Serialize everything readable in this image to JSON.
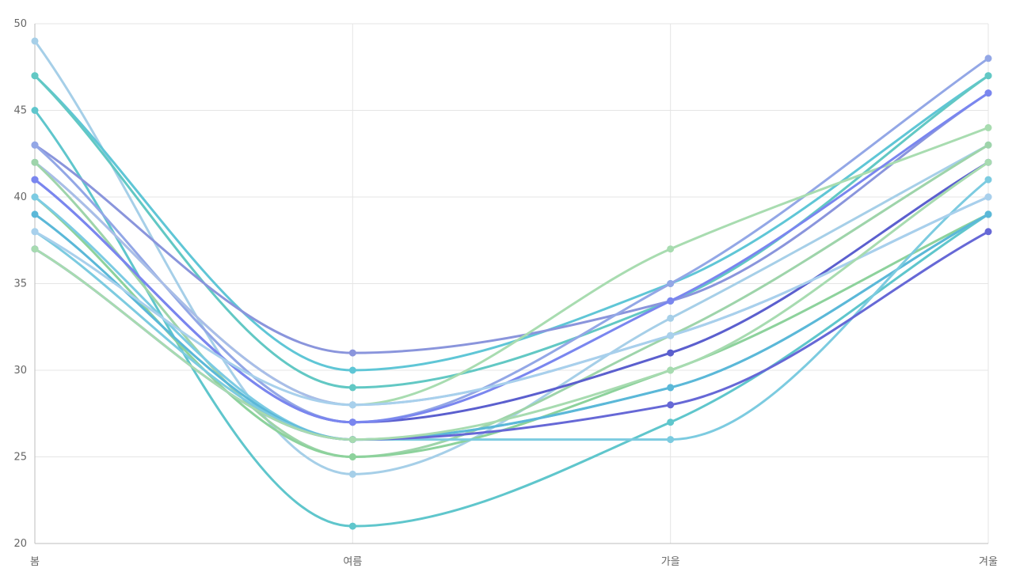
{
  "chart_data": {
    "type": "line",
    "title": "",
    "xlabel": "",
    "ylabel": "",
    "categories": [
      "봄",
      "여름",
      "가을",
      "겨울"
    ],
    "ylim": [
      20,
      50
    ],
    "yticks": [
      20,
      25,
      30,
      35,
      40,
      45,
      50
    ],
    "grid": true,
    "legend": "none",
    "curve": "smooth",
    "series": [
      {
        "values": [
          49,
          24,
          33,
          43
        ],
        "color": "#a6cfe8"
      },
      {
        "values": [
          47,
          30,
          35,
          47
        ],
        "color": "#5fc6d6"
      },
      {
        "values": [
          47,
          29,
          34,
          47
        ],
        "color": "#62c8c4"
      },
      {
        "values": [
          45,
          21,
          27,
          39
        ],
        "color": "#5fc6cc"
      },
      {
        "values": [
          43,
          31,
          34,
          46
        ],
        "color": "#8a95dc"
      },
      {
        "values": [
          43,
          27,
          35,
          48
        ],
        "color": "#93a7e6"
      },
      {
        "values": [
          42,
          28,
          37,
          44
        ],
        "color": "#a8dcb0"
      },
      {
        "values": [
          42,
          28,
          32,
          40
        ],
        "color": "#a9bde9"
      },
      {
        "values": [
          42,
          25,
          32,
          43
        ],
        "color": "#9ed4aa"
      },
      {
        "values": [
          41,
          27,
          31,
          42
        ],
        "color": "#5b5fce"
      },
      {
        "values": [
          41,
          27,
          34,
          46
        ],
        "color": "#7a86ef"
      },
      {
        "values": [
          40,
          25,
          30,
          39
        ],
        "color": "#8dd29c"
      },
      {
        "values": [
          40,
          26,
          29,
          39
        ],
        "color": "#7ccbe3"
      },
      {
        "values": [
          39,
          26,
          29,
          39
        ],
        "color": "#5bb8d8"
      },
      {
        "values": [
          38,
          26,
          26,
          41
        ],
        "color": "#7ccbe0"
      },
      {
        "values": [
          38,
          28,
          32,
          40
        ],
        "color": "#a8d0ec"
      },
      {
        "values": [
          37,
          26,
          28,
          38
        ],
        "color": "#6668d6"
      },
      {
        "values": [
          37,
          26,
          30,
          42
        ],
        "color": "#a7dbb0"
      }
    ]
  },
  "colors": {
    "grid": "#e5e5e5",
    "axis": "#bdbdbd",
    "tick_text": "#666666"
  }
}
